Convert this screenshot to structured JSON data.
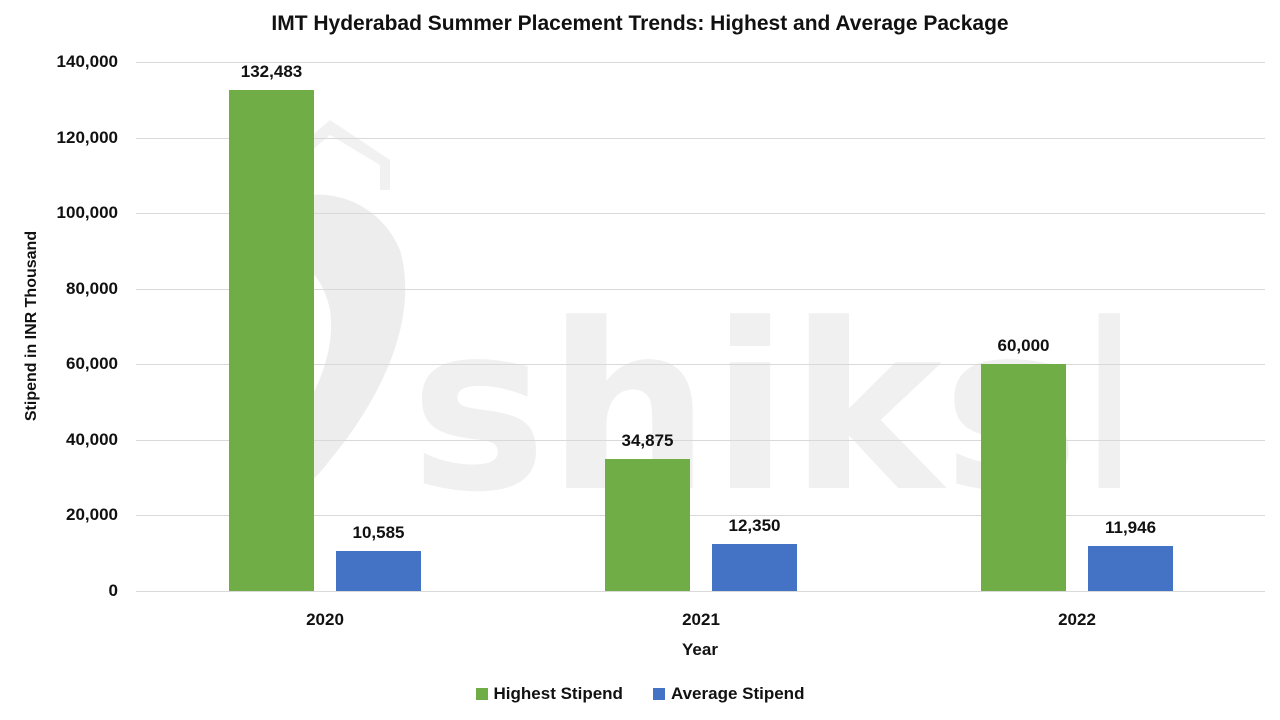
{
  "chart_data": {
    "type": "bar",
    "title": "IMT Hyderabad Summer Placement Trends: Highest and Average Package",
    "xlabel": "Year",
    "ylabel": "Stipend in INR Thousand",
    "categories": [
      "2020",
      "2021",
      "2022"
    ],
    "series": [
      {
        "name": "Highest Stipend",
        "color": "#70ad47",
        "values": [
          132483,
          34875,
          60000
        ],
        "labels": [
          "132,483",
          "34,875",
          "60,000"
        ]
      },
      {
        "name": "Average Stipend",
        "color": "#4472c4",
        "values": [
          10585,
          12350,
          11946
        ],
        "labels": [
          "10,585",
          "12,350",
          "11,946"
        ]
      }
    ],
    "ylim": [
      0,
      140000
    ],
    "yticks": [
      "0",
      "20,000",
      "40,000",
      "60,000",
      "80,000",
      "100,000",
      "120,000",
      "140,000"
    ],
    "grid": true,
    "legend_position": "bottom"
  },
  "watermark": {
    "text": "shiksha"
  }
}
